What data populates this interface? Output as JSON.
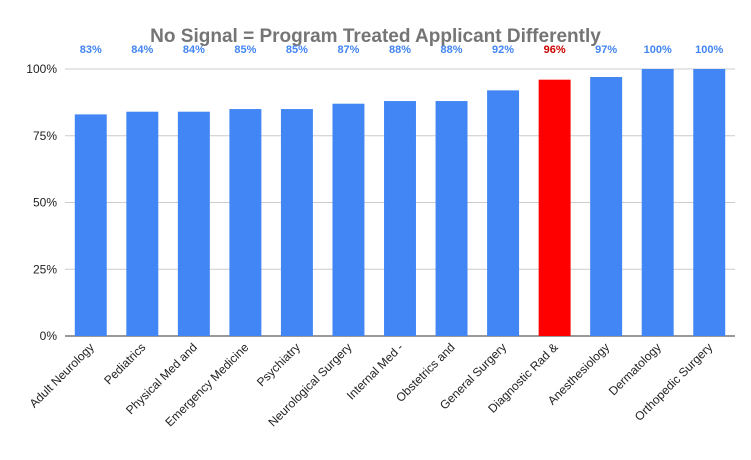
{
  "chart_data": {
    "type": "bar",
    "title": "No Signal = Program Treated Applicant Differently",
    "xlabel": "",
    "ylabel": "",
    "ylim": [
      0,
      100
    ],
    "yticks": [
      "0%",
      "25%",
      "50%",
      "75%",
      "100%"
    ],
    "ytick_values": [
      0,
      25,
      50,
      75,
      100
    ],
    "grid": true,
    "categories": [
      "Adult Neurology",
      "Pediatrics",
      "Physical Med and",
      "Emergency Medicine",
      "Psychiatry",
      "Neurological Surgery",
      "Internal Med -",
      "Obstetrics and",
      "General Surgery",
      "Diagnostic Rad &",
      "Anesthesiology",
      "Dermatology",
      "Orthopedic Surgery"
    ],
    "values": [
      83,
      84,
      84,
      85,
      85,
      87,
      88,
      88,
      92,
      96,
      97,
      100,
      100
    ],
    "data_labels": [
      "83%",
      "84%",
      "84%",
      "85%",
      "85%",
      "87%",
      "88%",
      "88%",
      "92%",
      "96%",
      "97%",
      "100%",
      "100%"
    ],
    "highlight_index": 9,
    "colors": {
      "bar": "#4285f4",
      "highlight": "#ff0000",
      "label": "#4285f4",
      "highlight_label": "#cc0000"
    }
  }
}
